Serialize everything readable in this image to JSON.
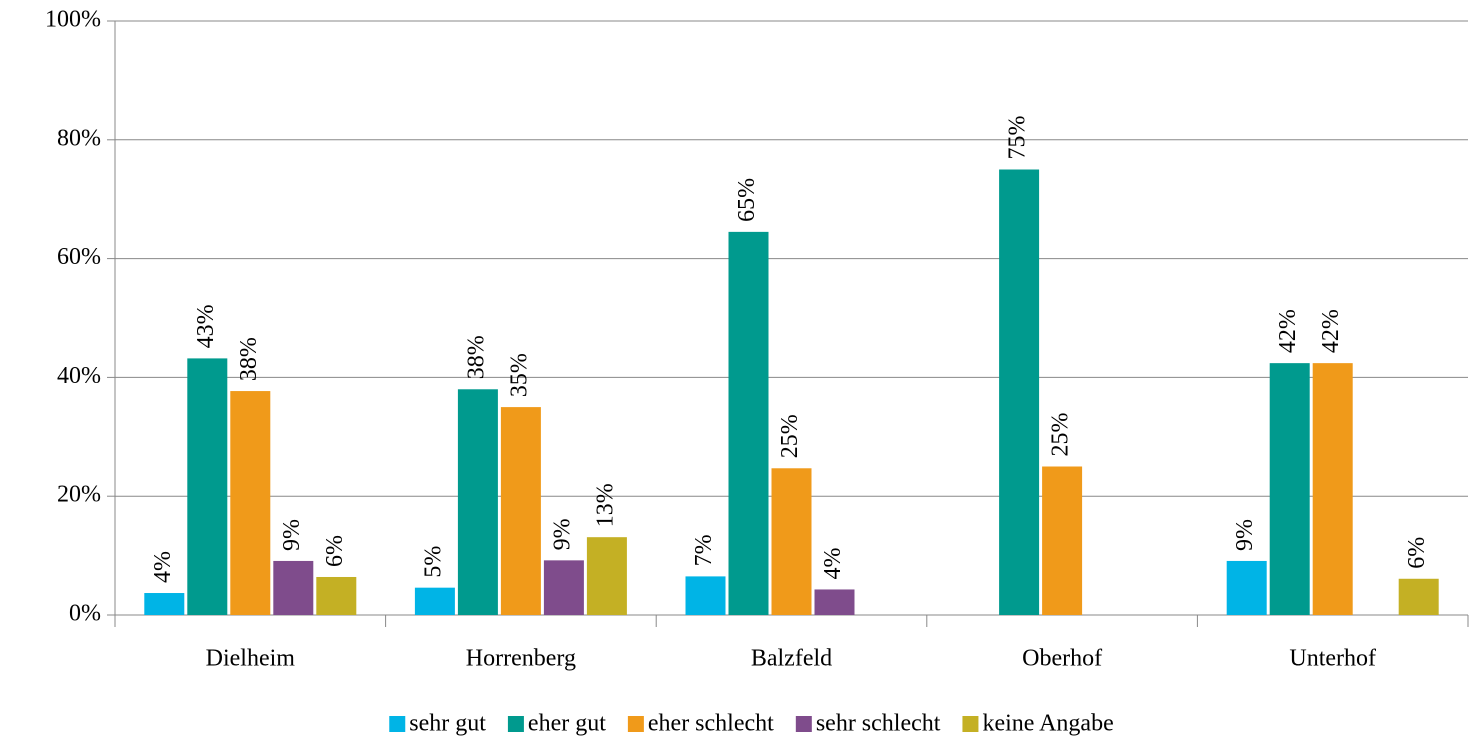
{
  "chart_data": {
    "type": "bar",
    "categories": [
      "Dielheim",
      "Horrenberg",
      "Balzfeld",
      "Oberhof",
      "Unterhof"
    ],
    "series": [
      {
        "name": "sehr gut",
        "color": "#00b4e6",
        "values": [
          3.7,
          4.6,
          6.5,
          null,
          9.1
        ],
        "value_labels": [
          "4%",
          "5%",
          "7%",
          null,
          "9%"
        ]
      },
      {
        "name": "eher gut",
        "color": "#009a8e",
        "values": [
          43.2,
          38,
          64.5,
          75,
          42.4
        ],
        "value_labels": [
          "43%",
          "38%",
          "65%",
          "75%",
          "42%"
        ]
      },
      {
        "name": "eher schlecht",
        "color": "#f09a1a",
        "values": [
          37.7,
          35,
          24.7,
          25,
          42.4
        ],
        "value_labels": [
          "38%",
          "35%",
          "25%",
          "25%",
          "42%"
        ]
      },
      {
        "name": "sehr schlecht",
        "color": "#7f4c8c",
        "values": [
          9.1,
          9.2,
          4.3,
          null,
          null
        ],
        "value_labels": [
          "9%",
          "9%",
          "4%",
          null,
          null
        ]
      },
      {
        "name": "keine Angabe",
        "color": "#c4b024",
        "values": [
          6.4,
          13.1,
          null,
          null,
          6.1
        ],
        "value_labels": [
          "6%",
          "13%",
          null,
          null,
          "6%"
        ]
      }
    ],
    "ylim": [
      0,
      100
    ],
    "yticks": [
      {
        "value": 0,
        "label": "0%"
      },
      {
        "value": 20,
        "label": "20%"
      },
      {
        "value": 40,
        "label": "40%"
      },
      {
        "value": 60,
        "label": "60%"
      },
      {
        "value": 80,
        "label": "80%"
      },
      {
        "value": 100,
        "label": "100%"
      }
    ],
    "grid": true,
    "legend": "bottom"
  }
}
